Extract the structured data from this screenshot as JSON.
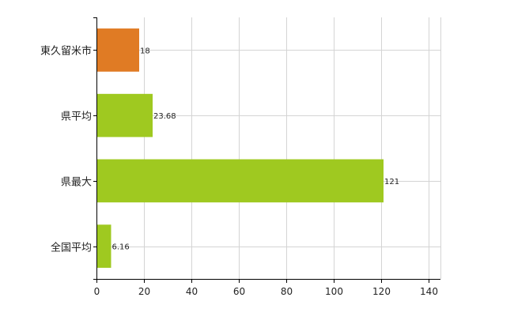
{
  "chart_data": {
    "type": "bar",
    "orientation": "horizontal",
    "categories": [
      "東久留米市",
      "県平均",
      "県最大",
      "全国平均"
    ],
    "values": [
      18,
      23.68,
      121,
      6.16
    ],
    "data_labels": [
      "18",
      "23.68",
      "121",
      "6.16"
    ],
    "bar_colors": [
      "#e07b24",
      "#9fc920",
      "#9fc920",
      "#9fc920"
    ],
    "xlim": [
      0,
      145
    ],
    "x_ticks": [
      0,
      20,
      40,
      60,
      80,
      100,
      120,
      140
    ],
    "x_tick_labels": [
      "0",
      "20",
      "40",
      "60",
      "80",
      "100",
      "120",
      "140"
    ],
    "grid": true,
    "title": "",
    "xlabel": "",
    "ylabel": ""
  }
}
